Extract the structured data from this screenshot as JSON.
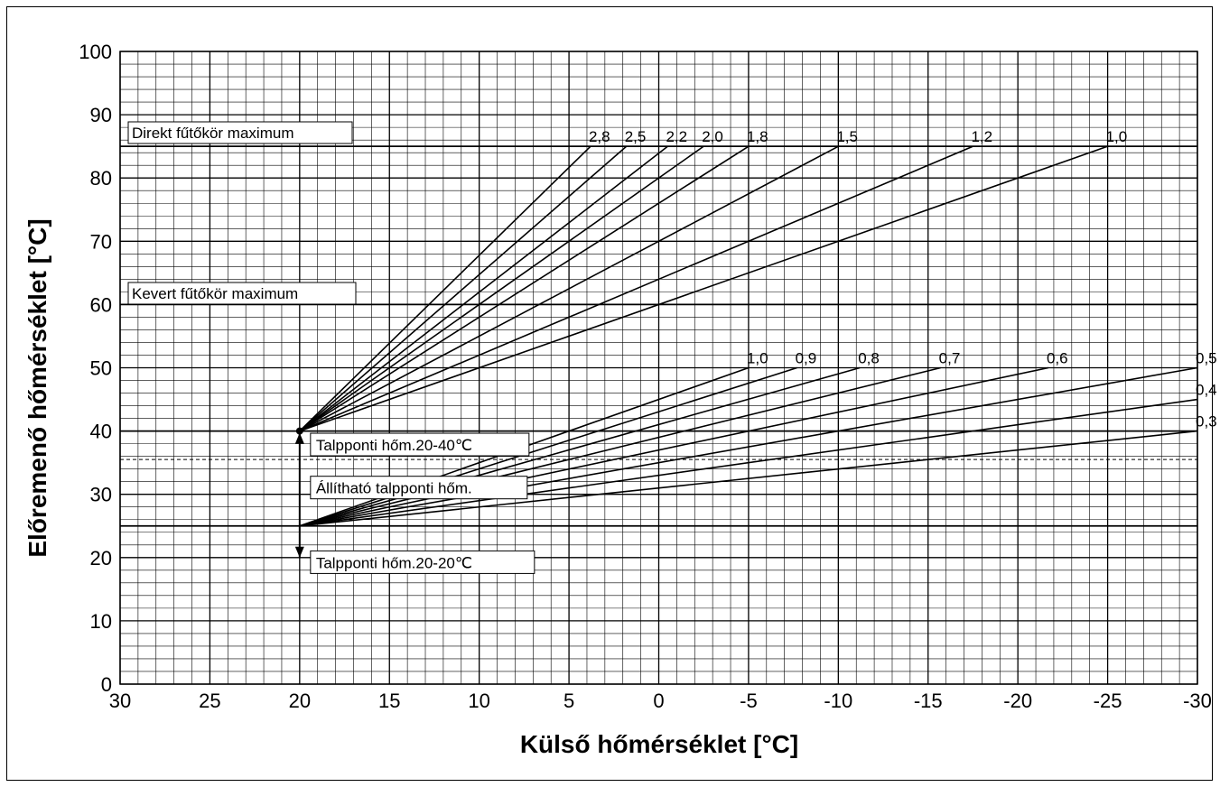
{
  "chart_data": {
    "type": "line",
    "xlabel": "Külső hőmérséklet [°C]",
    "ylabel": "Előremenő hőmérséklet [°C]",
    "xlim": [
      30,
      -30
    ],
    "ylim": [
      0,
      100
    ],
    "x_ticks": [
      "30",
      "25",
      "20",
      "15",
      "10",
      "5",
      "0",
      "-5",
      "-10",
      "-15",
      "-20",
      "-25",
      "-30"
    ],
    "y_ticks": [
      "100",
      "90",
      "80",
      "70",
      "60",
      "50",
      "40",
      "30",
      "20",
      "10",
      "0"
    ],
    "grid": true,
    "reference_lines": [
      {
        "label": "Direkt fűtőkör maximum",
        "y": 85
      },
      {
        "label": "Kevert fűtőkör maximum",
        "y": 60
      }
    ],
    "dashed_line_y": 35.5,
    "base_lines_y": [
      40,
      25
    ],
    "series_high": [
      {
        "name": "2,8",
        "x": [
          20,
          3.8
        ],
        "y": [
          40,
          85
        ]
      },
      {
        "name": "2,5",
        "x": [
          20,
          1.8
        ],
        "y": [
          40,
          85
        ]
      },
      {
        "name": "2,2",
        "x": [
          20,
          -0.5
        ],
        "y": [
          40,
          85
        ]
      },
      {
        "name": "2,0",
        "x": [
          20,
          -2.5
        ],
        "y": [
          40,
          85
        ]
      },
      {
        "name": "1,8",
        "x": [
          20,
          -5
        ],
        "y": [
          40,
          85
        ]
      },
      {
        "name": "1,5",
        "x": [
          20,
          -10
        ],
        "y": [
          40,
          85
        ]
      },
      {
        "name": "1,2",
        "x": [
          20,
          -17.5
        ],
        "y": [
          40,
          85
        ]
      },
      {
        "name": "1,0",
        "x": [
          20,
          -25
        ],
        "y": [
          40,
          85
        ]
      }
    ],
    "series_low": [
      {
        "name": "1,0",
        "x": [
          20,
          -5
        ],
        "y": [
          25,
          50
        ]
      },
      {
        "name": "0,9",
        "x": [
          20,
          -7.7
        ],
        "y": [
          25,
          50
        ]
      },
      {
        "name": "0,8",
        "x": [
          20,
          -11.2
        ],
        "y": [
          25,
          50
        ]
      },
      {
        "name": "0,7",
        "x": [
          20,
          -15.7
        ],
        "y": [
          25,
          50
        ]
      },
      {
        "name": "0,6",
        "x": [
          20,
          -21.7
        ],
        "y": [
          25,
          50
        ]
      },
      {
        "name": "0,5",
        "x": [
          20,
          -30
        ],
        "y": [
          25,
          50
        ]
      },
      {
        "name": "0,4",
        "x": [
          20,
          -30
        ],
        "y": [
          25,
          45
        ]
      },
      {
        "name": "0,3",
        "x": [
          20,
          -30
        ],
        "y": [
          25,
          40
        ]
      }
    ],
    "adjustment": {
      "x": 20,
      "y_top": 40,
      "y_bottom": 20,
      "labels": [
        {
          "text": "Talpponti hőm.20-40℃",
          "y": 37.8
        },
        {
          "text": "Állítható talpponti hőm.",
          "y": 31
        },
        {
          "text": "Talpponti hőm.20-20℃",
          "y": 19.2
        }
      ]
    }
  }
}
